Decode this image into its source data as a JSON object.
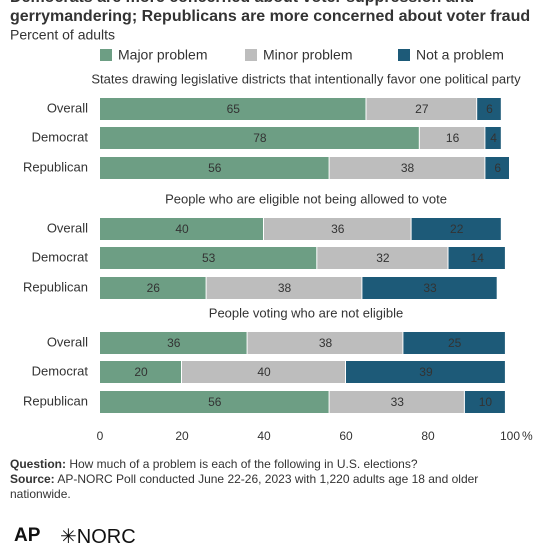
{
  "chart_data": {
    "type": "stacked_bar",
    "title": "Democrats are more concerned about voter suppression and gerrymandering; Republicans are more concerned about voter fraud",
    "subtitle": "Percent of adults",
    "series": [
      {
        "name": "Major problem",
        "color": "#6d9e84"
      },
      {
        "name": "Minor problem",
        "color": "#bdbdbd"
      },
      {
        "name": "Not a problem",
        "color": "#1d5a78"
      }
    ],
    "panels": [
      {
        "title": "States drawing legislative districts that intentionally favor one political party",
        "categories": [
          "Overall",
          "Democrat",
          "Republican"
        ],
        "series": [
          {
            "values": [
              65,
              78,
              56
            ]
          },
          {
            "values": [
              27,
              16,
              38
            ]
          },
          {
            "values": [
              6,
              4,
              6
            ]
          }
        ]
      },
      {
        "title": "People who are eligible not being allowed to vote",
        "categories": [
          "Overall",
          "Democrat",
          "Republican"
        ],
        "series": [
          {
            "values": [
              40,
              53,
              26
            ]
          },
          {
            "values": [
              36,
              32,
              38
            ]
          },
          {
            "values": [
              22,
              14,
              33
            ]
          }
        ]
      },
      {
        "title": "People voting who are not eligible",
        "categories": [
          "Overall",
          "Democrat",
          "Republican"
        ],
        "series": [
          {
            "values": [
              36,
              20,
              56
            ]
          },
          {
            "values": [
              38,
              40,
              33
            ]
          },
          {
            "values": [
              25,
              39,
              10
            ]
          }
        ]
      }
    ],
    "xlim": [
      0,
      100
    ],
    "xticks": [
      0,
      20,
      40,
      60,
      80,
      100
    ],
    "x_unit": "%",
    "notes": {
      "question_label": "Question:",
      "question": "How much of a problem is each of the following in U.S. elections?",
      "source_label": "Source:",
      "source": "AP-NORC Poll conducted June 22-26, 2023 with 1,220 adults age 18 and older nationwide."
    },
    "logos": [
      "AP",
      "NORC"
    ]
  }
}
